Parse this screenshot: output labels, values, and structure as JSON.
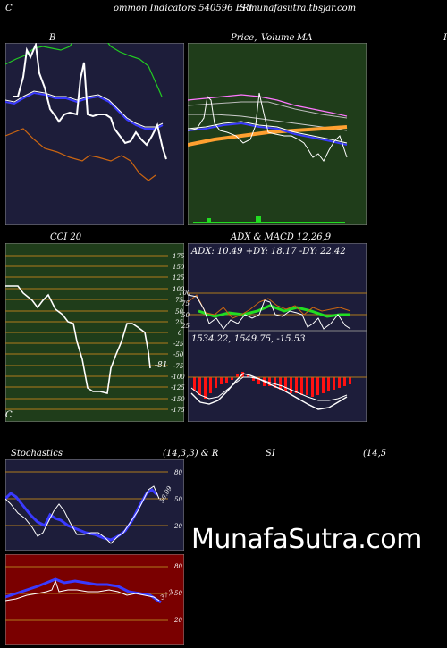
{
  "header": {
    "c_left": "C",
    "title_left": "ommon  Indicators 540596  ERI",
    "title_right": "S munafasutra.tbsjar.com",
    "c_bottom": "C"
  },
  "bb_panel": {
    "label": "B"
  },
  "price_panel": {
    "label_price": "Price,",
    "label_volume": "Volume",
    "label_ma": "MA",
    "edge_letter": "I"
  },
  "cci_panel": {
    "label": "CCI 20",
    "ticks": [
      "175",
      "150",
      "125",
      "100",
      "75",
      "50",
      "25",
      "0",
      "-25",
      "-50",
      "-75",
      "-100",
      "-125",
      "-150",
      "-175"
    ],
    "current_value": "-81"
  },
  "adx_macd_panel": {
    "label": "ADX  & MACD 12,26,9",
    "adx_text": "ADX: 10.49  +DY: 18.17 -DY: 22.42",
    "adx_ticks": [
      "100",
      "75",
      "50",
      "25"
    ],
    "macd_text": "1534.22,   1549.75,   -15.53"
  },
  "stoch_panel": {
    "label_left": "Stochastics",
    "label_params": "(14,3,3) & R",
    "rsi_label": "SI",
    "rsi_params": "(14,5",
    "ticks": [
      "80",
      "50",
      "20"
    ],
    "current_value": "50.09"
  },
  "rsi_panel": {
    "ticks": [
      "80",
      "50",
      "20"
    ],
    "current_value": "37.3"
  },
  "watermark": "MunafaSutra.com",
  "colors": {
    "navy": "#1d1d3a",
    "forest": "#1f3d1a",
    "maroon": "#7a0000",
    "orange": "#c8641e",
    "bright_green": "#22dd22",
    "blue": "#3a3aff"
  }
}
